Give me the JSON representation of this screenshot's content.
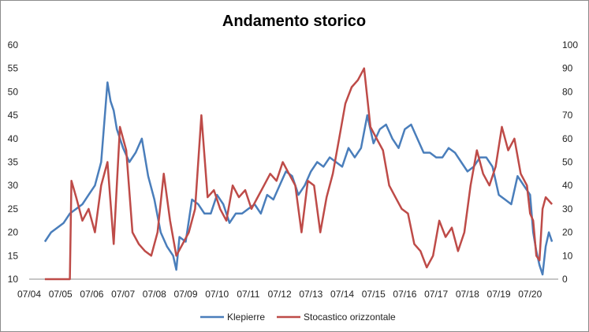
{
  "chart_data": {
    "type": "line",
    "title": "Andamento storico",
    "x_ticks": [
      "07/04",
      "07/05",
      "07/06",
      "07/07",
      "07/08",
      "07/09",
      "07/10",
      "07/11",
      "07/12",
      "07/13",
      "07/14",
      "07/15",
      "07/16",
      "07/17",
      "07/18",
      "07/19",
      "07/20"
    ],
    "y_left": {
      "min": 10,
      "max": 60,
      "ticks": [
        10,
        15,
        20,
        25,
        30,
        35,
        40,
        45,
        50,
        55,
        60
      ]
    },
    "y_right": {
      "min": 0,
      "max": 100,
      "ticks": [
        0,
        10,
        20,
        30,
        40,
        50,
        60,
        70,
        80,
        90,
        100
      ]
    },
    "grid": false,
    "legend_position": "bottom",
    "series": [
      {
        "name": "Klepierre",
        "color": "#4a7ebb",
        "axis": "left",
        "x": [
          2004.5,
          2004.7,
          2004.9,
          2005.1,
          2005.3,
          2005.5,
          2005.7,
          2005.9,
          2006.1,
          2006.3,
          2006.5,
          2006.6,
          2006.7,
          2006.8,
          2007.0,
          2007.2,
          2007.4,
          2007.6,
          2007.8,
          2008.0,
          2008.2,
          2008.4,
          2008.6,
          2008.7,
          2008.8,
          2009.0,
          2009.2,
          2009.4,
          2009.6,
          2009.8,
          2010.0,
          2010.2,
          2010.4,
          2010.6,
          2010.8,
          2011.0,
          2011.2,
          2011.4,
          2011.6,
          2011.8,
          2012.0,
          2012.2,
          2012.4,
          2012.6,
          2012.8,
          2013.0,
          2013.2,
          2013.4,
          2013.6,
          2013.8,
          2014.0,
          2014.2,
          2014.4,
          2014.6,
          2014.8,
          2015.0,
          2015.2,
          2015.4,
          2015.6,
          2015.8,
          2016.0,
          2016.2,
          2016.4,
          2016.6,
          2016.8,
          2017.0,
          2017.2,
          2017.4,
          2017.6,
          2017.8,
          2018.0,
          2018.2,
          2018.4,
          2018.6,
          2018.8,
          2019.0,
          2019.2,
          2019.4,
          2019.6,
          2019.8,
          2020.0,
          2020.1,
          2020.2,
          2020.3,
          2020.4,
          2020.5,
          2020.6,
          2020.7
        ],
        "values": [
          18,
          20,
          21,
          22,
          24,
          25,
          26,
          28,
          30,
          35,
          52,
          48,
          46,
          42,
          38,
          35,
          37,
          40,
          32,
          27,
          20,
          17,
          15,
          12,
          19,
          18,
          27,
          26,
          24,
          24,
          28,
          26,
          22,
          24,
          24,
          25,
          26,
          24,
          28,
          27,
          30,
          33,
          32,
          28,
          30,
          33,
          35,
          34,
          36,
          35,
          34,
          38,
          36,
          38,
          45,
          39,
          42,
          43,
          40,
          38,
          42,
          43,
          40,
          37,
          37,
          36,
          36,
          38,
          37,
          35,
          33,
          34,
          36,
          36,
          34,
          28,
          27,
          26,
          32,
          30,
          28,
          20,
          16,
          13,
          11,
          17,
          20,
          18
        ]
      },
      {
        "name": "Stocastico orizzontale",
        "color": "#be4b48",
        "axis": "right",
        "x": [
          2004.5,
          2005.0,
          2005.3,
          2005.35,
          2005.5,
          2005.7,
          2005.9,
          2006.1,
          2006.3,
          2006.5,
          2006.7,
          2006.9,
          2007.1,
          2007.3,
          2007.5,
          2007.7,
          2007.9,
          2008.1,
          2008.3,
          2008.5,
          2008.7,
          2008.9,
          2009.1,
          2009.3,
          2009.5,
          2009.7,
          2009.9,
          2010.1,
          2010.3,
          2010.5,
          2010.7,
          2010.9,
          2011.1,
          2011.3,
          2011.5,
          2011.7,
          2011.9,
          2012.1,
          2012.3,
          2012.5,
          2012.7,
          2012.9,
          2013.1,
          2013.3,
          2013.5,
          2013.7,
          2013.9,
          2014.1,
          2014.3,
          2014.5,
          2014.7,
          2014.9,
          2015.1,
          2015.3,
          2015.5,
          2015.7,
          2015.9,
          2016.1,
          2016.3,
          2016.5,
          2016.7,
          2016.9,
          2017.1,
          2017.3,
          2017.5,
          2017.7,
          2017.9,
          2018.1,
          2018.3,
          2018.5,
          2018.7,
          2018.9,
          2019.1,
          2019.3,
          2019.5,
          2019.7,
          2019.9,
          2020.0,
          2020.1,
          2020.2,
          2020.3,
          2020.4,
          2020.5,
          2020.7
        ],
        "values": [
          0,
          0,
          0,
          42,
          35,
          25,
          30,
          20,
          40,
          50,
          15,
          65,
          55,
          20,
          15,
          12,
          10,
          20,
          45,
          25,
          10,
          15,
          20,
          30,
          70,
          35,
          38,
          30,
          25,
          40,
          35,
          38,
          30,
          35,
          40,
          45,
          42,
          50,
          45,
          40,
          20,
          42,
          40,
          20,
          35,
          45,
          60,
          75,
          82,
          85,
          90,
          65,
          60,
          55,
          40,
          35,
          30,
          28,
          15,
          12,
          5,
          10,
          25,
          18,
          22,
          12,
          20,
          40,
          55,
          45,
          40,
          48,
          65,
          55,
          60,
          45,
          40,
          28,
          25,
          10,
          8,
          30,
          35,
          32
        ]
      }
    ]
  }
}
